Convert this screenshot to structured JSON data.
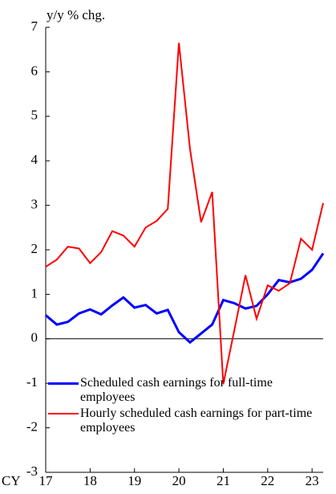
{
  "chart_data": {
    "type": "line",
    "ylabel": "y/y % chg.",
    "xlabel": "CY",
    "categories": [
      "17",
      null,
      null,
      null,
      "18",
      null,
      null,
      null,
      "19",
      null,
      null,
      null,
      "20",
      null,
      null,
      null,
      "21",
      null,
      null,
      null,
      "22",
      null,
      null,
      null,
      "23",
      null
    ],
    "series": [
      {
        "name": "Scheduled cash earnings for full-time employees",
        "color": "#0000ff",
        "values": [
          0.53,
          0.32,
          0.38,
          0.57,
          0.66,
          0.55,
          0.75,
          0.93,
          0.7,
          0.76,
          0.57,
          0.65,
          0.15,
          -0.08,
          0.12,
          0.32,
          0.87,
          0.8,
          0.68,
          0.74,
          1.0,
          1.32,
          1.27,
          1.35,
          1.55,
          1.92
        ]
      },
      {
        "name": "Hourly scheduled cash earnings for part-time employees",
        "color": "#ff0000",
        "values": [
          1.62,
          1.78,
          2.07,
          2.03,
          1.7,
          1.95,
          2.42,
          2.32,
          2.07,
          2.5,
          2.65,
          2.92,
          6.65,
          4.27,
          2.62,
          3.3,
          -1.02,
          0.2,
          1.43,
          0.45,
          1.2,
          1.08,
          1.25,
          2.25,
          2.0,
          3.05
        ]
      }
    ],
    "ylim": [
      -3,
      7
    ],
    "yticks": [
      -3,
      -2,
      -1,
      0,
      1,
      2,
      3,
      4,
      5,
      6,
      7
    ],
    "legend": "lower left"
  }
}
